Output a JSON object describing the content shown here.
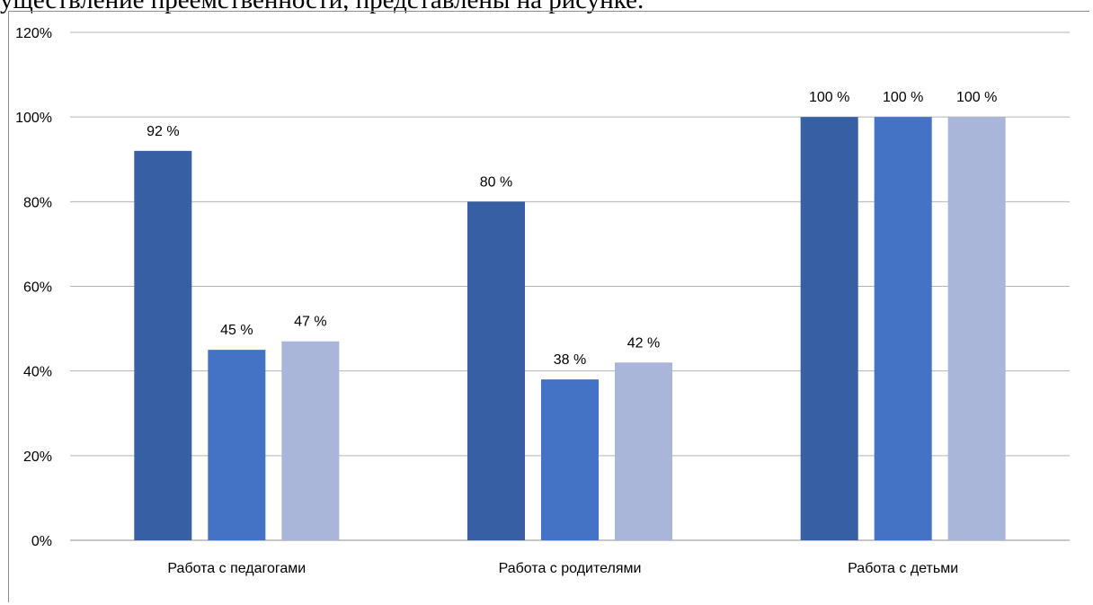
{
  "header_text": "уществление преемственности, представлены на рисунке.",
  "chart_data": {
    "type": "bar",
    "categories": [
      "Работа с педагогами",
      "Работа с родителями",
      "Работа с детьми"
    ],
    "series": [
      {
        "values": [
          92,
          80,
          100
        ],
        "labels": [
          "92 %",
          "80 %",
          "100 %"
        ]
      },
      {
        "values": [
          45,
          38,
          100
        ],
        "labels": [
          "45 %",
          "38 %",
          "100 %"
        ]
      },
      {
        "values": [
          47,
          42,
          100
        ],
        "labels": [
          "47 %",
          "42 %",
          "100 %"
        ]
      }
    ],
    "y_ticks": [
      "0%",
      "20%",
      "40%",
      "60%",
      "80%",
      "100%",
      "120%"
    ],
    "ylim": [
      0,
      120
    ],
    "grid": true,
    "legend": "none",
    "colors": [
      "#375fa3",
      "#4472c4",
      "#a9b6da"
    ]
  }
}
